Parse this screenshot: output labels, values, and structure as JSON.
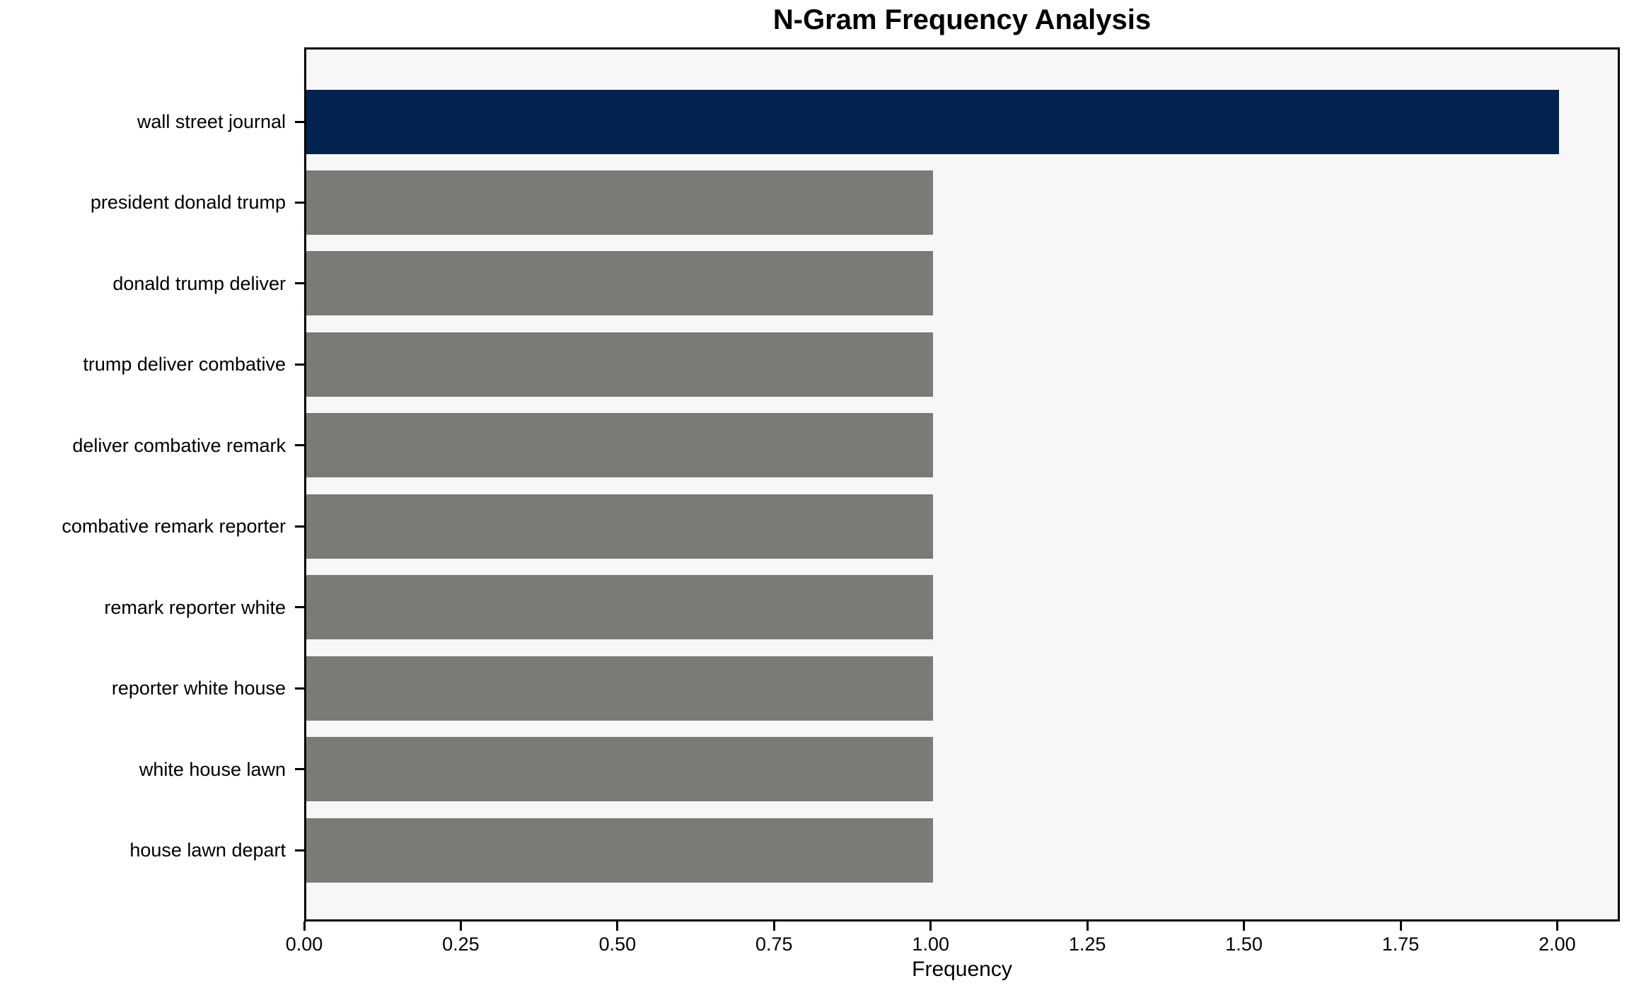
{
  "chart_data": {
    "type": "bar",
    "orientation": "horizontal",
    "title": "N-Gram Frequency Analysis",
    "xlabel": "Frequency",
    "ylabel": "",
    "categories": [
      "wall street journal",
      "president donald trump",
      "donald trump deliver",
      "trump deliver combative",
      "deliver combative remark",
      "combative remark reporter",
      "remark reporter white",
      "reporter white house",
      "white house lawn",
      "house lawn depart"
    ],
    "values": [
      2,
      1,
      1,
      1,
      1,
      1,
      1,
      1,
      1,
      1
    ],
    "bar_colors": [
      "#02234d",
      "#7b7a77",
      "#7b7a77",
      "#7b7a77",
      "#7b7a77",
      "#7b7a77",
      "#7b7a77",
      "#7b7a77",
      "#7b7a77",
      "#7b7a77"
    ],
    "xlim": [
      0,
      2.1
    ],
    "x_ticks": [
      {
        "value": 0.0,
        "label": "0.00"
      },
      {
        "value": 0.25,
        "label": "0.25"
      },
      {
        "value": 0.5,
        "label": "0.50"
      },
      {
        "value": 0.75,
        "label": "0.75"
      },
      {
        "value": 1.0,
        "label": "1.00"
      },
      {
        "value": 1.25,
        "label": "1.25"
      },
      {
        "value": 1.5,
        "label": "1.50"
      },
      {
        "value": 1.75,
        "label": "1.75"
      },
      {
        "value": 2.0,
        "label": "2.00"
      }
    ],
    "grid": false,
    "legend_position": "none",
    "colors": {
      "highlight_bar": "#02234d",
      "regular_bar": "#7b7a77",
      "plot_background": "#f7f7f7",
      "figure_background": "#ffffff",
      "spine": "#000000",
      "text": "#000000"
    }
  }
}
